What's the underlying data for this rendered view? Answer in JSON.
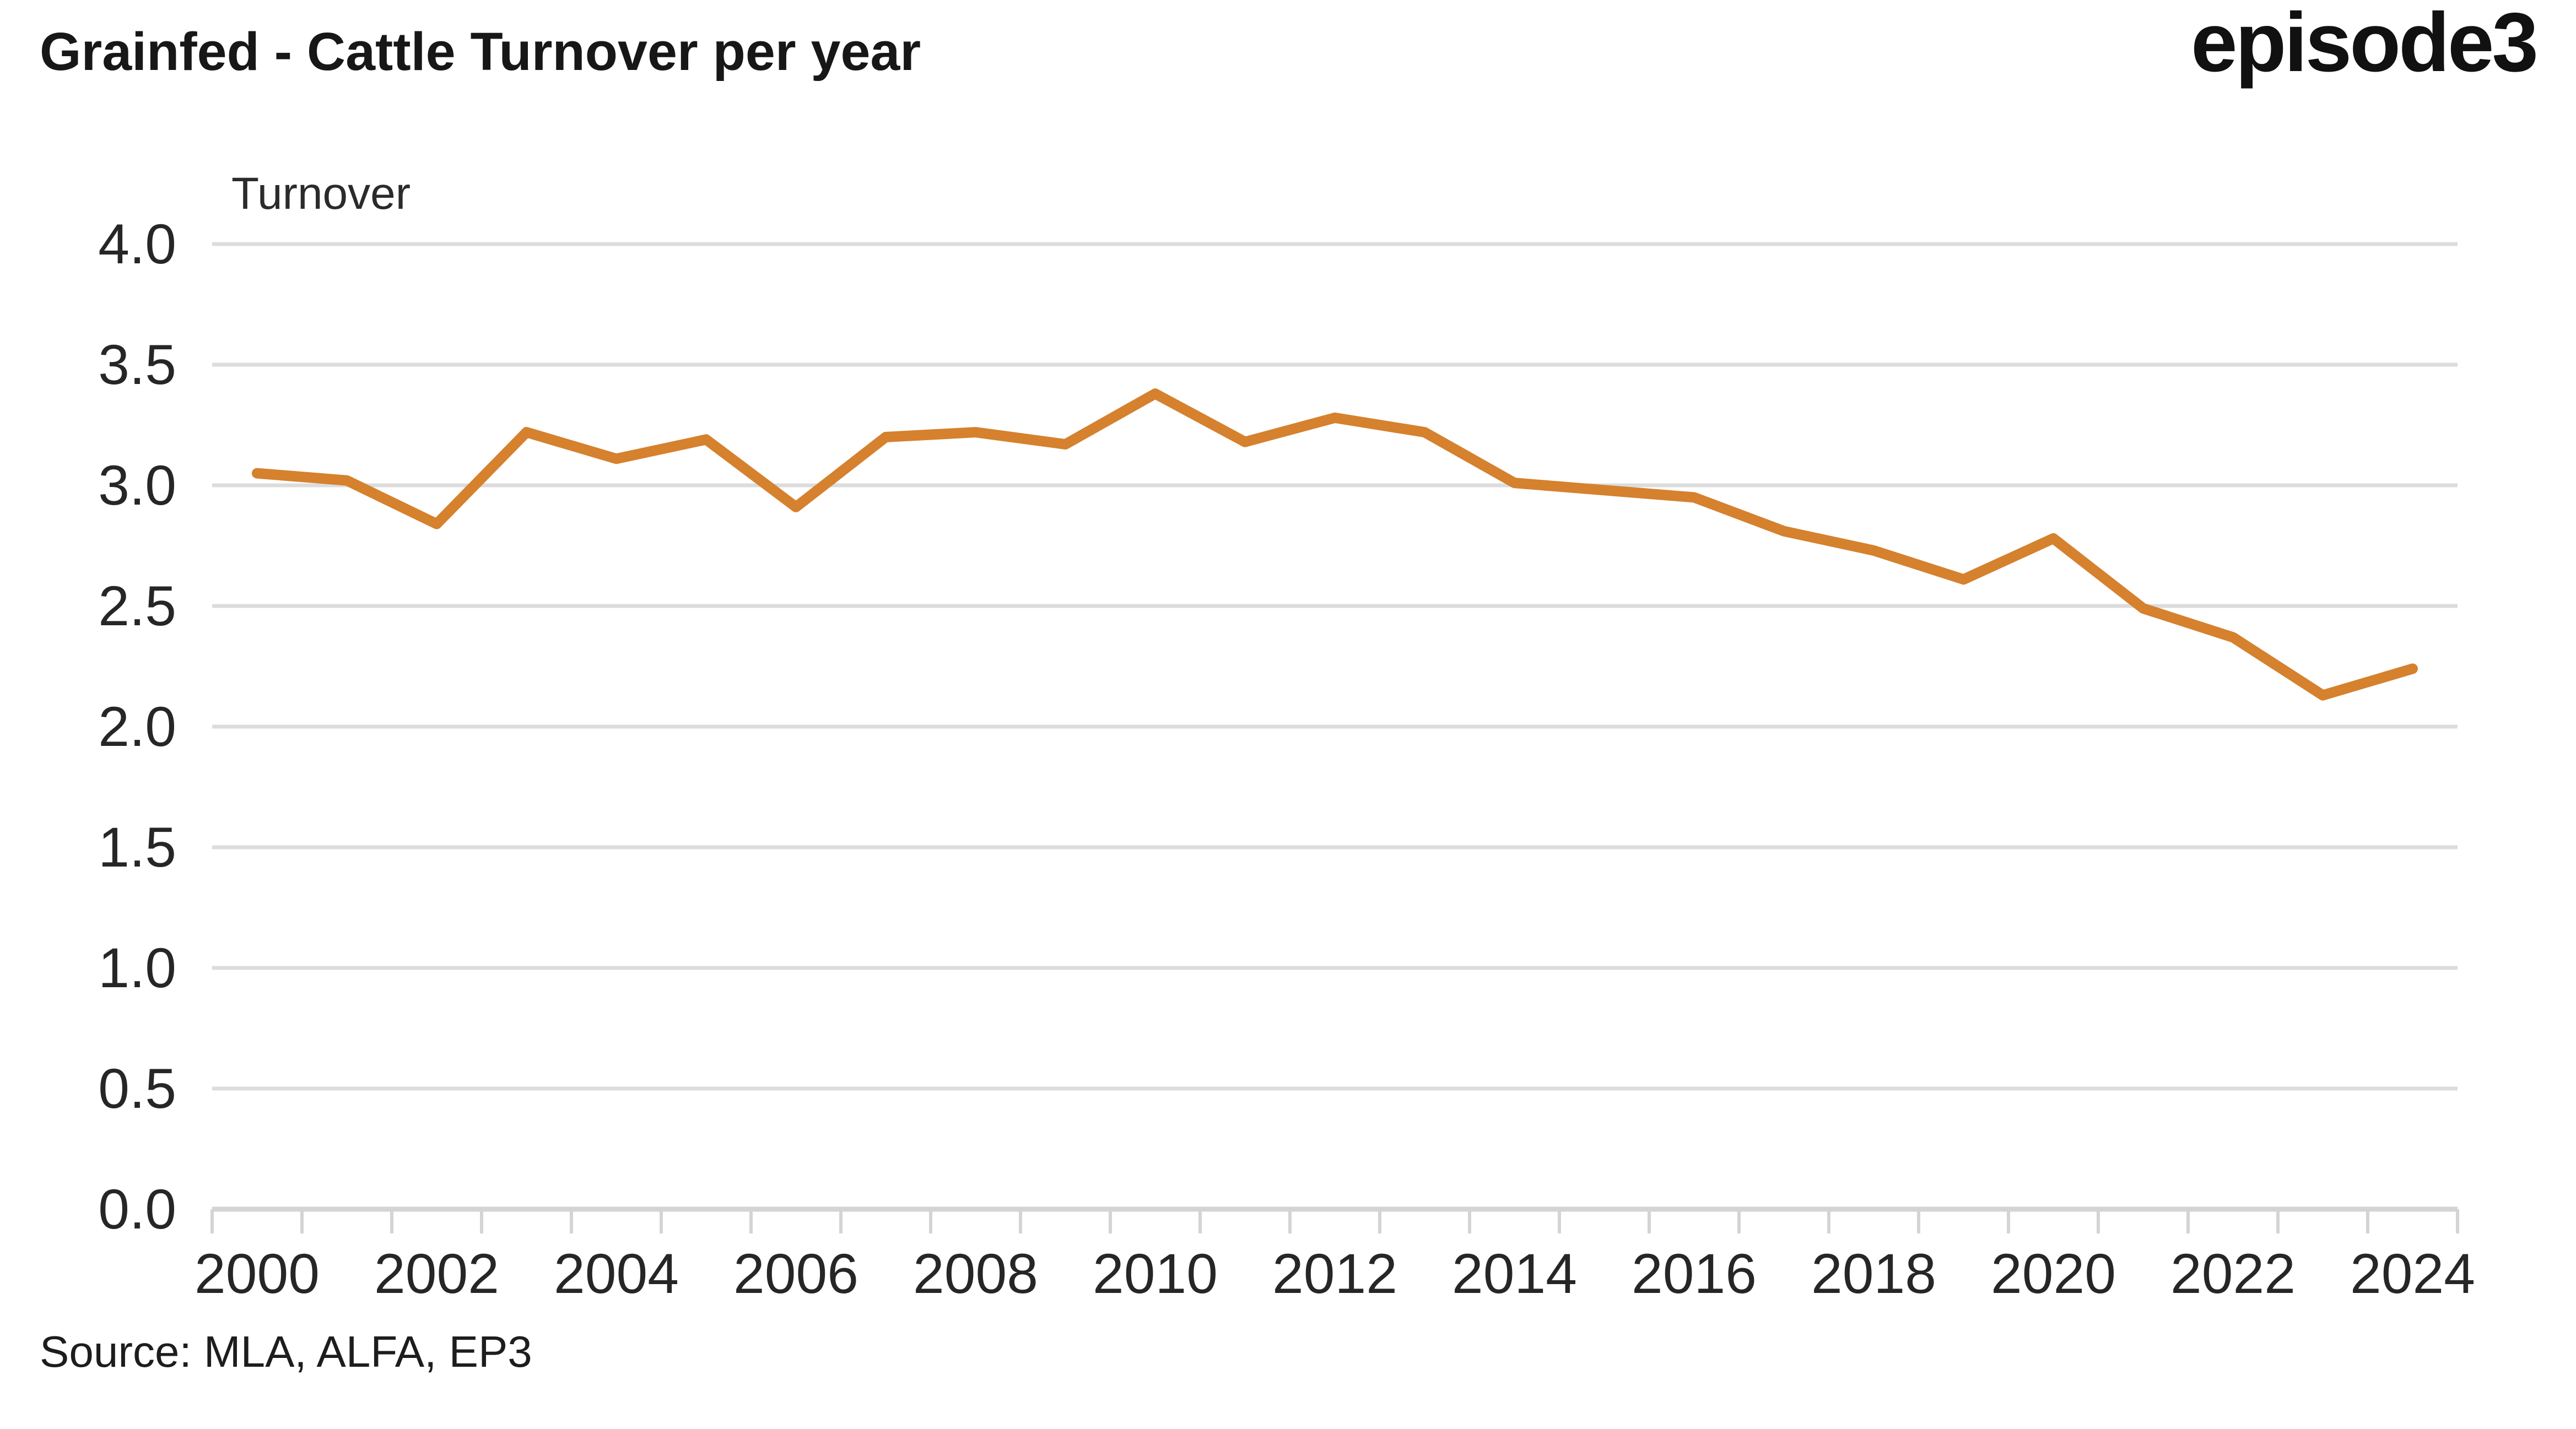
{
  "header": {
    "title": "Grainfed - Cattle Turnover per year",
    "logo_text": "episode3"
  },
  "footer": {
    "source": "Source: MLA, ALFA, EP3"
  },
  "chart_data": {
    "type": "line",
    "title": "Grainfed - Cattle Turnover per year",
    "series_label": "Turnover",
    "legend_position": "none",
    "grid": "horizontal",
    "x": [
      2000,
      2001,
      2002,
      2003,
      2004,
      2005,
      2006,
      2007,
      2008,
      2009,
      2010,
      2011,
      2012,
      2013,
      2014,
      2015,
      2016,
      2017,
      2018,
      2019,
      2020,
      2021,
      2022,
      2023,
      2024
    ],
    "values": [
      3.05,
      3.02,
      2.84,
      3.22,
      3.11,
      3.19,
      2.91,
      3.2,
      3.22,
      3.17,
      3.38,
      3.18,
      3.28,
      3.22,
      3.01,
      2.98,
      2.95,
      2.81,
      2.73,
      2.61,
      2.78,
      2.49,
      2.37,
      2.13,
      2.24
    ],
    "x_tick_labels": [
      "2000",
      "2002",
      "2004",
      "2006",
      "2008",
      "2010",
      "2012",
      "2014",
      "2016",
      "2018",
      "2020",
      "2022",
      "2024"
    ],
    "y_tick_labels": [
      "0.0",
      "0.5",
      "1.0",
      "1.5",
      "2.0",
      "2.5",
      "3.0",
      "3.5",
      "4.0"
    ],
    "ylim": [
      0.0,
      4.0
    ],
    "xlabel": "",
    "ylabel": "Turnover",
    "colors": {
      "line": "#D5812E",
      "grid": "#DCDCDC",
      "axis": "#D4D4D4",
      "text": "#262626",
      "title_text": "#171717"
    }
  }
}
